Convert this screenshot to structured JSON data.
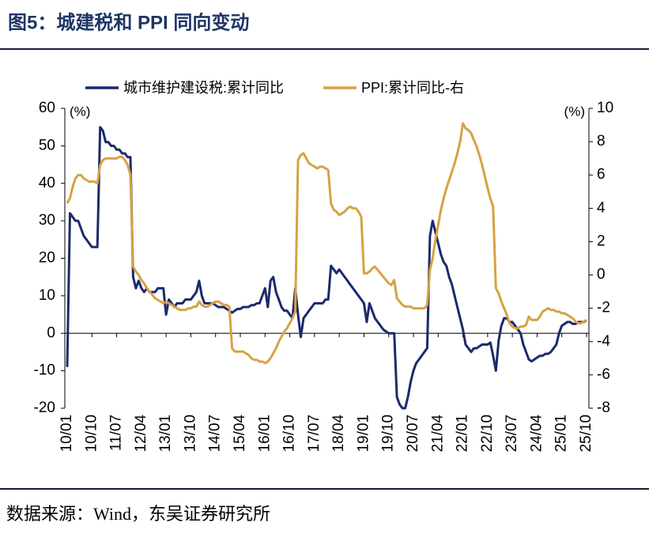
{
  "chart_data": {
    "type": "line",
    "title": "图5：城建税和 PPI 同向变动",
    "source": "数据来源：Wind，东吴证券研究所",
    "y_label": "(%)",
    "y2_label": "(%)",
    "categories": [
      "10/01",
      null,
      null,
      null,
      null,
      null,
      null,
      null,
      null,
      "10/10",
      null,
      null,
      null,
      null,
      null,
      null,
      null,
      null,
      "11/07",
      null,
      null,
      null,
      null,
      null,
      null,
      null,
      null,
      "12/04",
      null,
      null,
      null,
      null,
      null,
      null,
      null,
      null,
      "13/01",
      null,
      null,
      null,
      null,
      null,
      null,
      null,
      null,
      "13/10",
      null,
      null,
      null,
      null,
      null,
      null,
      null,
      null,
      "14/07",
      null,
      null,
      null,
      null,
      null,
      null,
      null,
      null,
      "15/04",
      null,
      null,
      null,
      null,
      null,
      null,
      null,
      null,
      "16/01",
      null,
      null,
      null,
      null,
      null,
      null,
      null,
      null,
      "16/10",
      null,
      null,
      null,
      null,
      null,
      null,
      null,
      null,
      "17/07",
      null,
      null,
      null,
      null,
      null,
      null,
      null,
      null,
      "18/04",
      null,
      null,
      null,
      null,
      null,
      null,
      null,
      null,
      "19/01",
      null,
      null,
      null,
      null,
      null,
      null,
      null,
      null,
      "19/10",
      null,
      null,
      null,
      null,
      null,
      null,
      null,
      null,
      "20/07",
      null,
      null,
      null,
      null,
      null,
      null,
      null,
      null,
      "21/04",
      null,
      null,
      null,
      null,
      null,
      null,
      null,
      null,
      "22/01",
      null,
      null,
      null,
      null,
      null,
      null,
      null,
      null,
      "22/10",
      null,
      null,
      null,
      null,
      null,
      null,
      null,
      null,
      "23/07",
      null,
      null,
      null,
      null,
      null,
      null,
      null,
      null,
      "24/04",
      null,
      null,
      null,
      null,
      null,
      null,
      null,
      null,
      "25/01",
      null,
      null,
      null,
      null,
      null,
      null,
      null,
      null,
      "25/10"
    ],
    "series": [
      {
        "name": "城市维护建设税:累计同比",
        "color": "#1c2a6b",
        "axis": "y",
        "values": [
          -9,
          32,
          31,
          30,
          30,
          28,
          26,
          25,
          24,
          23,
          23,
          23,
          55,
          54,
          51,
          51,
          50,
          50,
          49,
          49,
          48,
          48,
          47,
          47,
          15,
          12,
          14,
          12,
          11,
          12,
          11,
          11,
          11,
          12,
          12,
          12,
          5,
          9,
          8,
          7,
          8,
          8,
          8,
          9,
          9,
          9,
          10,
          11,
          14,
          10,
          8,
          8,
          8,
          8,
          7.5,
          7,
          7,
          7,
          6.5,
          6,
          5.5,
          6,
          6.5,
          6.5,
          7,
          7,
          7,
          7.5,
          7.5,
          8,
          8,
          10,
          12,
          7,
          14,
          15,
          11,
          9,
          7,
          6,
          6,
          5,
          4,
          12,
          5,
          -1,
          4,
          5,
          6,
          7,
          8,
          8,
          8,
          8,
          9,
          9,
          18,
          17,
          16,
          17,
          16,
          15,
          14,
          13,
          12,
          11,
          10,
          9,
          8,
          3,
          8,
          6,
          4,
          3,
          2,
          1,
          0.5,
          0,
          0,
          0,
          -17,
          -19,
          -20,
          -20,
          -17,
          -13,
          -10,
          -8,
          -7,
          -6,
          -5,
          -4,
          26,
          30,
          27,
          24,
          21,
          19,
          18,
          15,
          13,
          10,
          7,
          4,
          1,
          -3,
          -4,
          -5,
          -4,
          -4,
          -3.5,
          -3,
          -3,
          -3,
          -2.5,
          -6,
          -10,
          -2,
          2,
          4,
          4,
          3,
          3,
          2,
          1,
          0,
          -3,
          -5,
          -7,
          -7.5,
          -7,
          -6.5,
          -6,
          -6,
          -5.5,
          -5.5,
          -5,
          -4,
          -3,
          0,
          2,
          2.5,
          3,
          3,
          2.5,
          2.5,
          3,
          3,
          3,
          3.5
        ]
      },
      {
        "name": "PPI:累计同比-右",
        "color": "#d6a243",
        "axis": "y2",
        "values": [
          4.3,
          4.6,
          5.3,
          5.8,
          6.0,
          6.0,
          5.8,
          5.7,
          5.6,
          5.6,
          5.6,
          5.5,
          6.6,
          6.9,
          7.0,
          7.0,
          7.0,
          7.0,
          7.0,
          7.1,
          7.1,
          6.9,
          6.6,
          6.0,
          0.5,
          0.2,
          0,
          -0.3,
          -0.5,
          -0.8,
          -1.0,
          -1.2,
          -1.4,
          -1.5,
          -1.6,
          -1.7,
          -1.6,
          -1.7,
          -1.8,
          -1.9,
          -2.0,
          -2.1,
          -2.1,
          -2.1,
          -2.0,
          -2.0,
          -1.9,
          -1.9,
          -1.6,
          -1.8,
          -1.9,
          -1.9,
          -1.8,
          -1.7,
          -1.6,
          -1.6,
          -1.7,
          -1.8,
          -1.8,
          -1.9,
          -4.4,
          -4.6,
          -4.6,
          -4.6,
          -4.6,
          -4.7,
          -4.8,
          -5.0,
          -5.1,
          -5.1,
          -5.2,
          -5.2,
          -5.3,
          -5.2,
          -5.0,
          -4.7,
          -4.4,
          -4.0,
          -3.7,
          -3.4,
          -3.2,
          -2.9,
          -2.6,
          -2.2,
          6.9,
          7.2,
          7.3,
          7.0,
          6.7,
          6.6,
          6.5,
          6.4,
          6.5,
          6.5,
          6.4,
          6.3,
          4.3,
          3.9,
          3.8,
          3.6,
          3.7,
          3.8,
          4.0,
          4.1,
          4.0,
          4.0,
          3.8,
          3.5,
          0.1,
          0.1,
          0.2,
          0.4,
          0.5,
          0.3,
          0.1,
          -0.1,
          -0.3,
          -0.5,
          -0.6,
          -0.3,
          -1.4,
          -1.6,
          -1.8,
          -1.9,
          -1.9,
          -1.9,
          -2.0,
          -2.0,
          -2.0,
          -2.0,
          -2.0,
          -1.8,
          0.3,
          1.0,
          2.1,
          3.0,
          3.9,
          4.6,
          5.2,
          5.7,
          6.2,
          6.7,
          7.3,
          8.0,
          9.1,
          8.8,
          8.7,
          8.5,
          8.1,
          7.7,
          7.2,
          6.6,
          5.9,
          5.2,
          4.6,
          4.1,
          -0.8,
          -1.1,
          -1.6,
          -2.0,
          -2.4,
          -2.9,
          -3.1,
          -3.2,
          -3.2,
          -3.1,
          -3.1,
          -3.0,
          -2.5,
          -2.7,
          -2.7,
          -2.7,
          -2.5,
          -2.2,
          -2.1,
          -2.0,
          -2.1,
          -2.1,
          -2.2,
          -2.2,
          -2.3,
          -2.3,
          -2.4,
          -2.5,
          -2.6,
          -2.8,
          -2.9,
          -2.9,
          -2.8,
          -2.7
        ]
      }
    ],
    "ylim": [
      -20,
      60
    ],
    "yticks": [
      -20,
      -10,
      0,
      10,
      20,
      30,
      40,
      50,
      60
    ],
    "y2lim": [
      -8,
      10
    ],
    "y2ticks": [
      -8,
      -6,
      -4,
      -2,
      0,
      2,
      4,
      6,
      8,
      10
    ],
    "legend": "top"
  }
}
